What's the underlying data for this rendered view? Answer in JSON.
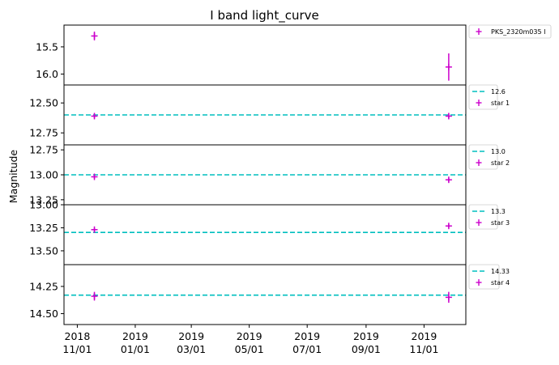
{
  "chart_data": {
    "type": "scatter",
    "title": "I band light_curve",
    "ylabel": "Magnitude",
    "xlabel": "",
    "x_axis": {
      "type": "date",
      "range": [
        "2018-10-18",
        "2019-12-15"
      ],
      "ticks": [
        {
          "date": "2018-11-01",
          "line1": "2018",
          "line2": "11/01"
        },
        {
          "date": "2019-01-01",
          "line1": "2019",
          "line2": "01/01"
        },
        {
          "date": "2019-03-01",
          "line1": "2019",
          "line2": "03/01"
        },
        {
          "date": "2019-05-01",
          "line1": "2019",
          "line2": "05/01"
        },
        {
          "date": "2019-07-01",
          "line1": "2019",
          "line2": "07/01"
        },
        {
          "date": "2019-09-01",
          "line1": "2019",
          "line2": "09/01"
        },
        {
          "date": "2019-11-01",
          "line1": "2019",
          "line2": "11/01"
        }
      ]
    },
    "panels": [
      {
        "ylim": [
          16.2,
          15.1
        ],
        "y_inverted": true,
        "yticks": [
          15.5,
          16.0
        ],
        "ytick_labels": [
          "15.5",
          "16.0"
        ],
        "reference_line": null,
        "marker_color": "#cc00cc",
        "series": {
          "name": "PKS_2320m035 I",
          "points": [
            {
              "x": "2018-11-19",
              "y": 15.3,
              "yerr": 0.08
            },
            {
              "x": "2019-11-27",
              "y": 15.87,
              "yerr": 0.25
            }
          ]
        }
      },
      {
        "ylim": [
          12.85,
          12.35
        ],
        "y_inverted": true,
        "yticks": [
          12.5,
          12.75
        ],
        "ytick_labels": [
          "12.50",
          "12.75"
        ],
        "reference_line": {
          "value": 12.6,
          "label": "12.6",
          "color": "#00bfbf"
        },
        "marker_color": "#cc00cc",
        "series": {
          "name": "star 1",
          "points": [
            {
              "x": "2018-11-19",
              "y": 12.61,
              "yerr": 0.02
            },
            {
              "x": "2019-11-27",
              "y": 12.61,
              "yerr": 0.02
            }
          ]
        }
      },
      {
        "ylim": [
          13.3,
          12.7
        ],
        "y_inverted": true,
        "yticks": [
          12.75,
          13.0,
          13.25
        ],
        "ytick_labels": [
          "12.75",
          "13.00",
          "13.25"
        ],
        "reference_line": {
          "value": 13.0,
          "label": "13.0",
          "color": "#00bfbf"
        },
        "marker_color": "#cc00cc",
        "series": {
          "name": "star 2",
          "points": [
            {
              "x": "2018-11-19",
              "y": 13.02,
              "yerr": 0.02
            },
            {
              "x": "2019-11-27",
              "y": 13.05,
              "yerr": 0.02
            }
          ]
        }
      },
      {
        "ylim": [
          13.65,
          13.0
        ],
        "y_inverted": true,
        "yticks": [
          13.0,
          13.25,
          13.5
        ],
        "ytick_labels": [
          "13.00",
          "13.25",
          "13.50"
        ],
        "reference_line": {
          "value": 13.3,
          "label": "13.3",
          "color": "#00bfbf"
        },
        "marker_color": "#cc00cc",
        "series": {
          "name": "star 3",
          "points": [
            {
              "x": "2018-11-19",
              "y": 13.27,
              "yerr": 0.02
            },
            {
              "x": "2019-11-27",
              "y": 13.23,
              "yerr": 0.02
            }
          ]
        }
      },
      {
        "ylim": [
          14.6,
          14.05
        ],
        "y_inverted": true,
        "yticks": [
          14.25,
          14.5
        ],
        "ytick_labels": [
          "14.25",
          "14.50"
        ],
        "reference_line": {
          "value": 14.33,
          "label": "14.33",
          "color": "#00bfbf"
        },
        "marker_color": "#cc00cc",
        "series": {
          "name": "star 4",
          "points": [
            {
              "x": "2018-11-19",
              "y": 14.34,
              "yerr": 0.04
            },
            {
              "x": "2019-11-27",
              "y": 14.35,
              "yerr": 0.05
            }
          ]
        }
      }
    ],
    "grid": false,
    "legend_position": "outside-right"
  }
}
